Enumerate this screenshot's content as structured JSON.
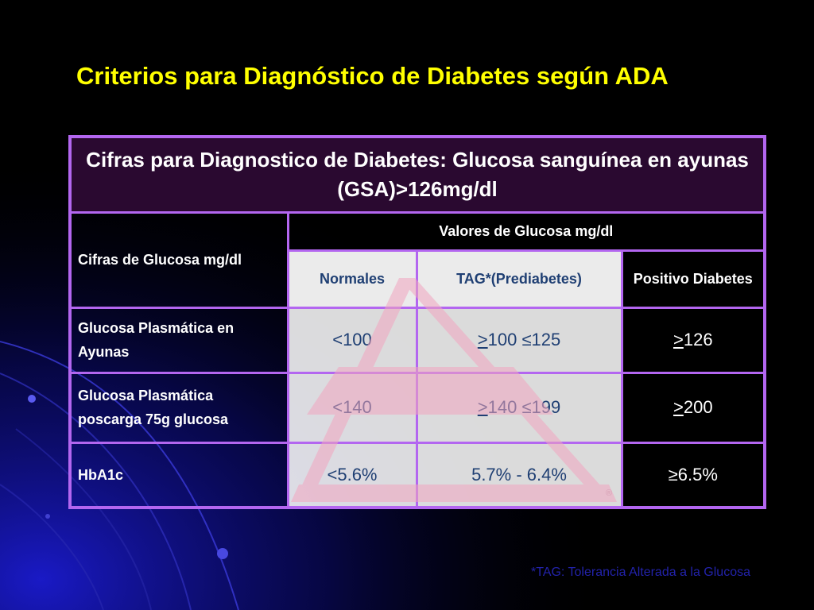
{
  "slide": {
    "title": "Criterios para Diagnóstico de Diabetes según ADA",
    "footnote": "*TAG: Tolerancia Alterada a la Glucosa"
  },
  "table": {
    "header": "Cifras para Diagnostico de Diabetes: Glucosa sanguínea en ayunas (GSA)>126mg/dl",
    "row_header_label": "Cifras de Glucosa mg/dl",
    "group_header": "Valores de Glucosa mg/dl",
    "columns": [
      "Normales",
      "TAG*(Prediabetes)",
      "Positivo Diabetes"
    ],
    "rows": [
      {
        "label": "Glucosa Plasmática en Ayunas",
        "normal": "<100",
        "tag_under": ">",
        "tag_rest": "100 ≤125",
        "pos_under": ">",
        "pos_rest": "126"
      },
      {
        "label": "Glucosa Plasmática poscarga 75g glucosa",
        "normal": "<140",
        "tag_under": ">",
        "tag_rest": "140 ≤199",
        "pos_under": ">",
        "pos_rest": "200"
      },
      {
        "label": "HbA1c",
        "normal": "<5.6%",
        "tag_under": "",
        "tag_rest": "5.7% - 6.4%",
        "pos_under": "",
        "pos_rest": "≥6.5%"
      }
    ],
    "logo_mark": "®"
  },
  "colors": {
    "title": "#ffff00",
    "border": "#b366f0",
    "header_bg": "#2a0930",
    "value_text": "#1f3f73",
    "logo_pink": "#f7c5d6",
    "footnote": "#2222aa"
  }
}
